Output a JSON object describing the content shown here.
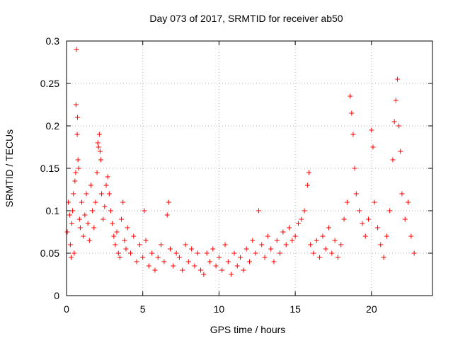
{
  "chart_data": {
    "type": "scatter",
    "title": "Day 073 of 2017, SRMTID for receiver ab50",
    "xlabel": "GPS time / hours",
    "ylabel": "SRMTID / TECUs",
    "xlim": [
      0,
      24
    ],
    "ylim": [
      0,
      0.3
    ],
    "xticks": [
      0,
      5,
      10,
      15,
      20
    ],
    "xtick_labels": [
      "0",
      "5",
      "10",
      "15",
      "20"
    ],
    "yticks": [
      0,
      0.05,
      0.1,
      0.15,
      0.2,
      0.25,
      0.3
    ],
    "ytick_labels": [
      "0",
      "0.05",
      "0.1",
      "0.15",
      "0.2",
      "0.25",
      "0.3"
    ],
    "grid": true,
    "marker": "+",
    "marker_color": "#ff0000",
    "series": [
      {
        "name": "SRMTID",
        "points": [
          [
            0.05,
            0.075
          ],
          [
            0.12,
            0.11
          ],
          [
            0.2,
            0.095
          ],
          [
            0.25,
            0.06
          ],
          [
            0.3,
            0.045
          ],
          [
            0.35,
            0.085
          ],
          [
            0.4,
            0.1
          ],
          [
            0.45,
            0.12
          ],
          [
            0.5,
            0.05
          ],
          [
            0.55,
            0.135
          ],
          [
            0.6,
            0.145
          ],
          [
            0.62,
            0.225
          ],
          [
            0.65,
            0.29
          ],
          [
            0.7,
            0.19
          ],
          [
            0.72,
            0.21
          ],
          [
            0.75,
            0.16
          ],
          [
            0.8,
            0.15
          ],
          [
            0.85,
            0.09
          ],
          [
            0.9,
            0.08
          ],
          [
            1.0,
            0.11
          ],
          [
            1.1,
            0.07
          ],
          [
            1.2,
            0.095
          ],
          [
            1.3,
            0.12
          ],
          [
            1.4,
            0.085
          ],
          [
            1.5,
            0.065
          ],
          [
            1.6,
            0.13
          ],
          [
            1.7,
            0.1
          ],
          [
            1.8,
            0.08
          ],
          [
            1.9,
            0.11
          ],
          [
            2.0,
            0.145
          ],
          [
            2.05,
            0.18
          ],
          [
            2.1,
            0.175
          ],
          [
            2.15,
            0.19
          ],
          [
            2.2,
            0.17
          ],
          [
            2.25,
            0.16
          ],
          [
            2.3,
            0.12
          ],
          [
            2.4,
            0.09
          ],
          [
            2.5,
            0.105
          ],
          [
            2.6,
            0.13
          ],
          [
            2.7,
            0.14
          ],
          [
            2.8,
            0.12
          ],
          [
            2.9,
            0.1
          ],
          [
            3.0,
            0.085
          ],
          [
            3.1,
            0.07
          ],
          [
            3.2,
            0.06
          ],
          [
            3.3,
            0.075
          ],
          [
            3.4,
            0.05
          ],
          [
            3.5,
            0.045
          ],
          [
            3.6,
            0.09
          ],
          [
            3.7,
            0.11
          ],
          [
            3.8,
            0.065
          ],
          [
            3.9,
            0.055
          ],
          [
            4.0,
            0.08
          ],
          [
            4.2,
            0.05
          ],
          [
            4.4,
            0.07
          ],
          [
            4.6,
            0.04
          ],
          [
            4.8,
            0.06
          ],
          [
            5.0,
            0.045
          ],
          [
            5.1,
            0.1
          ],
          [
            5.2,
            0.065
          ],
          [
            5.4,
            0.035
          ],
          [
            5.6,
            0.05
          ],
          [
            5.8,
            0.03
          ],
          [
            6.0,
            0.045
          ],
          [
            6.2,
            0.06
          ],
          [
            6.4,
            0.04
          ],
          [
            6.6,
            0.095
          ],
          [
            6.7,
            0.11
          ],
          [
            6.8,
            0.055
          ],
          [
            7.0,
            0.035
          ],
          [
            7.2,
            0.05
          ],
          [
            7.4,
            0.045
          ],
          [
            7.6,
            0.03
          ],
          [
            7.8,
            0.06
          ],
          [
            8.0,
            0.04
          ],
          [
            8.2,
            0.055
          ],
          [
            8.4,
            0.035
          ],
          [
            8.6,
            0.05
          ],
          [
            8.8,
            0.03
          ],
          [
            9.0,
            0.025
          ],
          [
            9.2,
            0.05
          ],
          [
            9.4,
            0.04
          ],
          [
            9.6,
            0.055
          ],
          [
            9.8,
            0.035
          ],
          [
            10.0,
            0.045
          ],
          [
            10.2,
            0.03
          ],
          [
            10.4,
            0.06
          ],
          [
            10.6,
            0.04
          ],
          [
            10.8,
            0.025
          ],
          [
            11.0,
            0.05
          ],
          [
            11.2,
            0.035
          ],
          [
            11.4,
            0.045
          ],
          [
            11.6,
            0.03
          ],
          [
            11.8,
            0.055
          ],
          [
            12.0,
            0.04
          ],
          [
            12.2,
            0.065
          ],
          [
            12.4,
            0.05
          ],
          [
            12.6,
            0.1
          ],
          [
            12.8,
            0.06
          ],
          [
            13.0,
            0.045
          ],
          [
            13.2,
            0.07
          ],
          [
            13.4,
            0.055
          ],
          [
            13.6,
            0.04
          ],
          [
            13.8,
            0.065
          ],
          [
            14.0,
            0.05
          ],
          [
            14.2,
            0.075
          ],
          [
            14.4,
            0.06
          ],
          [
            14.6,
            0.08
          ],
          [
            14.8,
            0.065
          ],
          [
            15.0,
            0.07
          ],
          [
            15.2,
            0.085
          ],
          [
            15.4,
            0.09
          ],
          [
            15.6,
            0.1
          ],
          [
            15.8,
            0.13
          ],
          [
            15.9,
            0.145
          ],
          [
            16.0,
            0.06
          ],
          [
            16.2,
            0.05
          ],
          [
            16.4,
            0.065
          ],
          [
            16.6,
            0.045
          ],
          [
            16.8,
            0.07
          ],
          [
            17.0,
            0.055
          ],
          [
            17.2,
            0.08
          ],
          [
            17.4,
            0.05
          ],
          [
            17.6,
            0.065
          ],
          [
            17.8,
            0.045
          ],
          [
            18.0,
            0.06
          ],
          [
            18.2,
            0.09
          ],
          [
            18.4,
            0.11
          ],
          [
            18.6,
            0.235
          ],
          [
            18.7,
            0.215
          ],
          [
            18.8,
            0.19
          ],
          [
            18.9,
            0.15
          ],
          [
            19.0,
            0.12
          ],
          [
            19.2,
            0.1
          ],
          [
            19.4,
            0.085
          ],
          [
            19.6,
            0.07
          ],
          [
            19.8,
            0.09
          ],
          [
            20.0,
            0.195
          ],
          [
            20.1,
            0.175
          ],
          [
            20.2,
            0.11
          ],
          [
            20.4,
            0.08
          ],
          [
            20.6,
            0.06
          ],
          [
            20.8,
            0.045
          ],
          [
            21.0,
            0.07
          ],
          [
            21.2,
            0.1
          ],
          [
            21.4,
            0.16
          ],
          [
            21.5,
            0.205
          ],
          [
            21.6,
            0.23
          ],
          [
            21.7,
            0.255
          ],
          [
            21.8,
            0.2
          ],
          [
            21.9,
            0.17
          ],
          [
            22.0,
            0.12
          ],
          [
            22.2,
            0.09
          ],
          [
            22.4,
            0.11
          ],
          [
            22.6,
            0.07
          ],
          [
            22.8,
            0.05
          ]
        ]
      }
    ]
  }
}
